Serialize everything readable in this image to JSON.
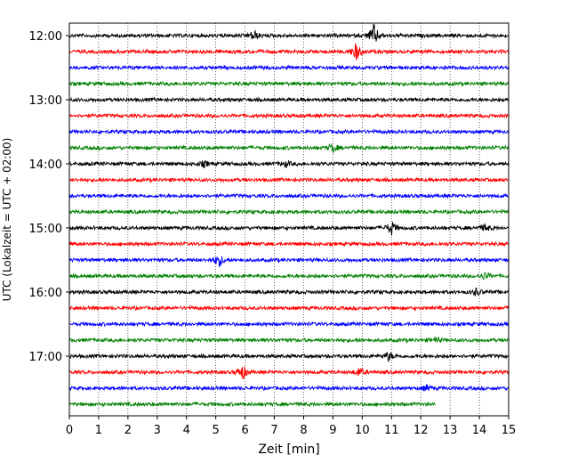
{
  "chart_data": {
    "type": "line",
    "title": "",
    "xlabel": "Zeit  [min]",
    "ylabel": "UTC (Lokalzeit = UTC + 02:00)",
    "xlim": [
      0,
      15
    ],
    "x_ticks": [
      "0",
      "1",
      "2",
      "3",
      "4",
      "5",
      "6",
      "7",
      "8",
      "9",
      "10",
      "11",
      "12",
      "13",
      "14",
      "15"
    ],
    "y_tick_labels": [
      "12:00",
      "13:00",
      "14:00",
      "15:00",
      "16:00",
      "17:00"
    ],
    "grid": "vertical dotted",
    "trace_colors": [
      "#000000",
      "#ff0000",
      "#0000ff",
      "#008000"
    ],
    "traces": [
      {
        "start": "12:00",
        "end_min": 15,
        "events": [
          [
            6.3,
            6
          ],
          [
            10.4,
            13
          ]
        ]
      },
      {
        "start": "12:15",
        "end_min": 15,
        "events": [
          [
            9.8,
            10
          ]
        ]
      },
      {
        "start": "12:30",
        "end_min": 15,
        "events": []
      },
      {
        "start": "12:45",
        "end_min": 15,
        "events": []
      },
      {
        "start": "13:00",
        "end_min": 15,
        "events": []
      },
      {
        "start": "13:15",
        "end_min": 15,
        "events": []
      },
      {
        "start": "13:30",
        "end_min": 15,
        "events": []
      },
      {
        "start": "13:45",
        "end_min": 15,
        "events": [
          [
            9.0,
            5
          ]
        ]
      },
      {
        "start": "14:00",
        "end_min": 15,
        "events": [
          [
            4.6,
            3
          ],
          [
            7.4,
            3
          ]
        ]
      },
      {
        "start": "14:15",
        "end_min": 15,
        "events": []
      },
      {
        "start": "14:30",
        "end_min": 15,
        "events": []
      },
      {
        "start": "14:45",
        "end_min": 15,
        "events": []
      },
      {
        "start": "15:00",
        "end_min": 15,
        "events": [
          [
            11.0,
            8
          ],
          [
            14.2,
            4
          ]
        ]
      },
      {
        "start": "15:15",
        "end_min": 15,
        "events": []
      },
      {
        "start": "15:30",
        "end_min": 15,
        "events": [
          [
            5.1,
            8
          ]
        ]
      },
      {
        "start": "15:45",
        "end_min": 15,
        "events": [
          [
            14.2,
            4
          ]
        ]
      },
      {
        "start": "16:00",
        "end_min": 15,
        "events": [
          [
            13.9,
            4
          ]
        ]
      },
      {
        "start": "16:15",
        "end_min": 15,
        "events": []
      },
      {
        "start": "16:30",
        "end_min": 15,
        "events": []
      },
      {
        "start": "16:45",
        "end_min": 15,
        "events": [
          [
            12.5,
            3
          ]
        ]
      },
      {
        "start": "17:00",
        "end_min": 15,
        "events": [
          [
            10.9,
            5
          ]
        ]
      },
      {
        "start": "17:15",
        "end_min": 15,
        "events": [
          [
            5.9,
            9
          ],
          [
            9.9,
            5
          ]
        ]
      },
      {
        "start": "17:30",
        "end_min": 15,
        "events": [
          [
            12.2,
            3
          ]
        ]
      },
      {
        "start": "17:45",
        "end_min": 12.5,
        "events": []
      }
    ]
  }
}
